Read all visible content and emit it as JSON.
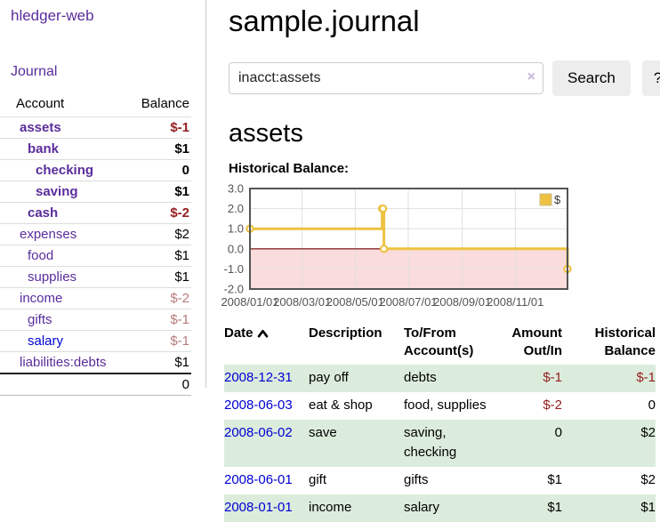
{
  "app": {
    "brand": "hledger-web"
  },
  "sidebar": {
    "nav": [
      {
        "label": "Journal"
      }
    ],
    "accounts_table": {
      "headers": {
        "account": "Account",
        "balance": "Balance"
      },
      "rows": [
        {
          "account": "assets",
          "balance": "$-1",
          "indent": 1,
          "bold": true,
          "balance_style": "neg-strong",
          "link_style": "purple"
        },
        {
          "account": "bank",
          "balance": "$1",
          "indent": 2,
          "bold": true,
          "balance_style": "normal",
          "link_style": "purple"
        },
        {
          "account": "checking",
          "balance": "0",
          "indent": 3,
          "bold": true,
          "balance_style": "normal",
          "link_style": "purple"
        },
        {
          "account": "saving",
          "balance": "$1",
          "indent": 3,
          "bold": true,
          "balance_style": "normal",
          "link_style": "purple"
        },
        {
          "account": "cash",
          "balance": "$-2",
          "indent": 2,
          "bold": true,
          "balance_style": "neg-strong",
          "link_style": "purple"
        },
        {
          "account": "expenses",
          "balance": "$2",
          "indent": 1,
          "bold": false,
          "balance_style": "normal",
          "link_style": "purple"
        },
        {
          "account": "food",
          "balance": "$1",
          "indent": 2,
          "bold": false,
          "balance_style": "normal",
          "link_style": "purple"
        },
        {
          "account": "supplies",
          "balance": "$1",
          "indent": 2,
          "bold": false,
          "balance_style": "normal",
          "link_style": "purple"
        },
        {
          "account": "income",
          "balance": "$-2",
          "indent": 1,
          "bold": false,
          "balance_style": "neg-muted",
          "link_style": "purple"
        },
        {
          "account": "gifts",
          "balance": "$-1",
          "indent": 2,
          "bold": false,
          "balance_style": "neg-muted",
          "link_style": "purple"
        },
        {
          "account": "salary",
          "balance": "$-1",
          "indent": 2,
          "bold": false,
          "balance_style": "neg-muted",
          "link_style": "blue"
        },
        {
          "account": "liabilities:debts",
          "balance": "$1",
          "indent": 1,
          "bold": false,
          "balance_style": "normal",
          "link_style": "purple"
        }
      ],
      "total": "0"
    }
  },
  "header": {
    "title": "sample.journal"
  },
  "search": {
    "value": "inacct:assets",
    "placeholder": "",
    "clear_icon": "×",
    "button_label": "Search",
    "help_label": "?"
  },
  "account_page": {
    "heading": "assets",
    "chart_title": "Historical Balance:"
  },
  "chart_data": {
    "type": "line",
    "step": true,
    "x_range": [
      "2008/01/01",
      "2008/12/31"
    ],
    "ylim": [
      -2,
      3
    ],
    "y_ticks": [
      3,
      2,
      1,
      0,
      -1,
      -2
    ],
    "x_ticks": [
      "2008/01/01",
      "2008/03/01",
      "2008/05/01",
      "2008/07/01",
      "2008/09/01",
      "2008/11/01"
    ],
    "series": [
      {
        "name": "$",
        "color": "#edc240",
        "points": [
          {
            "x": "2008/01/01",
            "y": 1
          },
          {
            "x": "2008/06/01",
            "y": 2
          },
          {
            "x": "2008/06/02",
            "y": 2
          },
          {
            "x": "2008/06/03",
            "y": 0
          },
          {
            "x": "2008/12/31",
            "y": -1
          }
        ]
      }
    ],
    "legend_position": "top-right",
    "grid": true,
    "colors": {
      "grid": "#e0e0e0",
      "border": "#545454",
      "labels": "#545454",
      "negative_region": "#fbdcdc",
      "zero_line": "#8b2b2b"
    }
  },
  "register": {
    "headers": {
      "date": "Date",
      "description": "Description",
      "accounts": "To/From Account(s)",
      "amount": "Amount Out/In",
      "balance": "Historical Balance"
    },
    "rows": [
      {
        "date": "2008-12-31",
        "description": "pay off",
        "accounts": [
          "debts"
        ],
        "amount": "$-1",
        "amount_negative": true,
        "balance": "$-1",
        "balance_negative": true,
        "shaded": true
      },
      {
        "date": "2008-06-03",
        "description": "eat & shop",
        "accounts": [
          "food",
          "supplies"
        ],
        "amount": "$-2",
        "amount_negative": true,
        "balance": "0",
        "balance_negative": false,
        "shaded": false
      },
      {
        "date": "2008-06-02",
        "description": "save",
        "accounts": [
          "saving",
          "checking"
        ],
        "amount": "0",
        "amount_negative": false,
        "balance": "$2",
        "balance_negative": false,
        "shaded": true
      },
      {
        "date": "2008-06-01",
        "description": "gift",
        "accounts": [
          "gifts"
        ],
        "amount": "$1",
        "amount_negative": false,
        "balance": "$2",
        "balance_negative": false,
        "shaded": false
      },
      {
        "date": "2008-01-01",
        "description": "income",
        "accounts": [
          "salary"
        ],
        "amount": "$1",
        "amount_negative": false,
        "balance": "$1",
        "balance_negative": false,
        "shaded": true
      }
    ]
  },
  "colors": {
    "link_purple": "#5a2d9b",
    "link_blue": "#0000d4",
    "negative_strong": "#941f20",
    "negative_muted": "#b87a7a",
    "row_shade_green": "#dcecdc",
    "button_gray": "#ededed"
  }
}
